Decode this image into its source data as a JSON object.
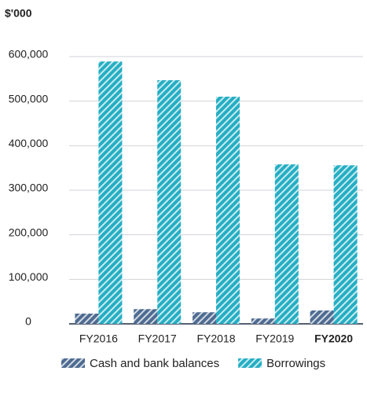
{
  "chart_data": {
    "type": "bar",
    "y_label": "$'000",
    "categories": [
      "FY2016",
      "FY2017",
      "FY2018",
      "FY2019",
      "FY2020"
    ],
    "series": [
      {
        "name": "Cash and bank balances",
        "color": "#4e6b91",
        "values": [
          23000,
          33000,
          26000,
          12000,
          30000
        ]
      },
      {
        "name": "Borrowings",
        "color": "#25aec3",
        "values": [
          589000,
          547000,
          510000,
          358000,
          356000
        ]
      }
    ],
    "ylim": [
      0,
      600000
    ],
    "yticks": [
      0,
      {
        "value": 100000,
        "label": "100,000"
      },
      {
        "value": 200000,
        "label": "200,000"
      },
      {
        "value": 300000,
        "label": "300,000"
      },
      {
        "value": 400000,
        "label": "400,000"
      },
      {
        "value": 500000,
        "label": "500,000"
      },
      {
        "value": 600000,
        "label": "600,000"
      }
    ],
    "grid": true,
    "legend": "bottom"
  }
}
